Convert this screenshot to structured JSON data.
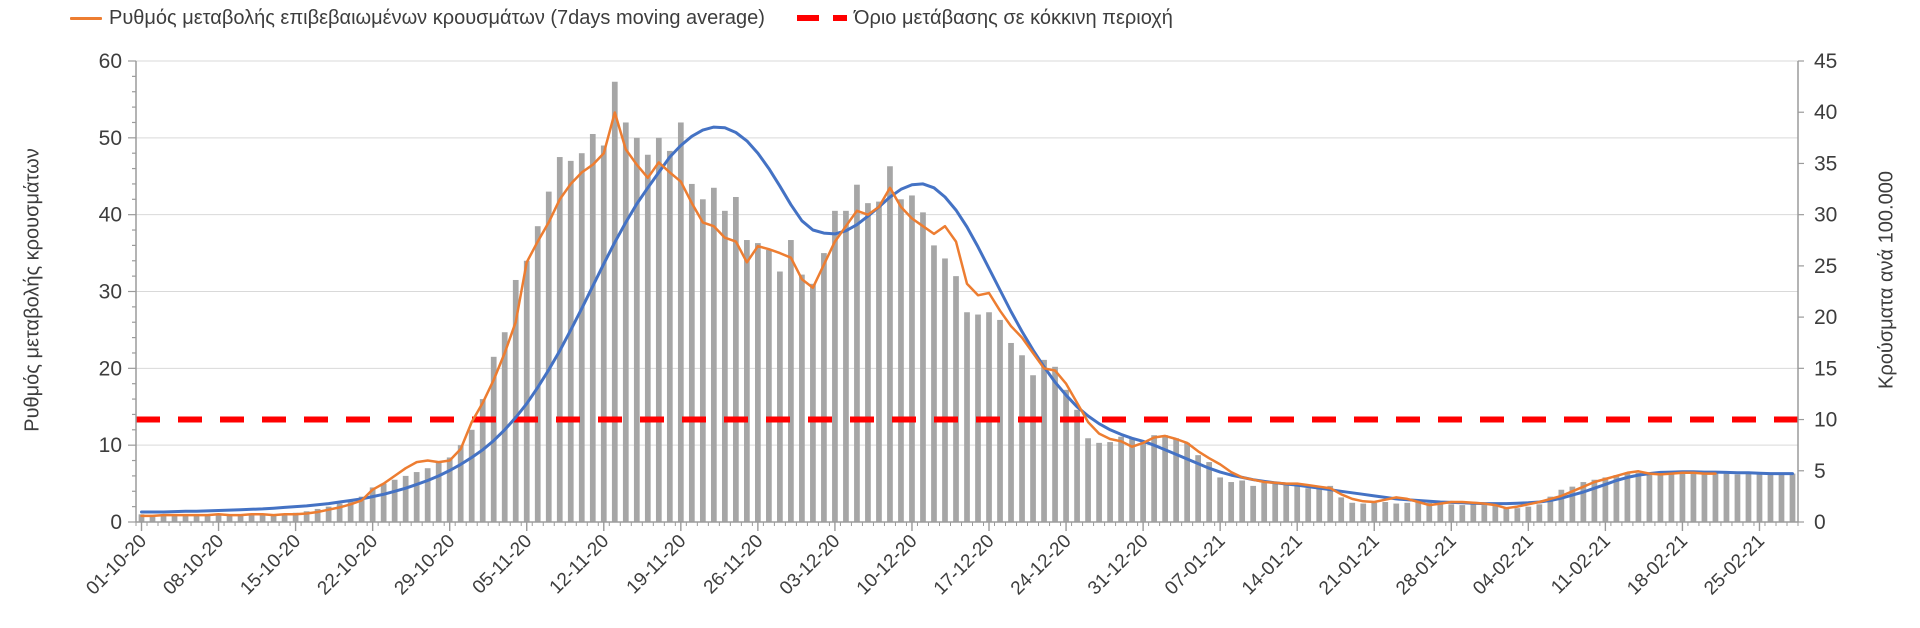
{
  "page": {
    "background": "#FFFFFF"
  },
  "legend": {
    "items": [
      {
        "label": "Ρυθμός μεταβολής επιβεβαιωμένων κρουσμάτων (7days moving average)",
        "marker": "orange-line",
        "color": "#ED7D31"
      },
      {
        "label": "Όριο μετάβασης σε κόκκινη περιοχή",
        "marker": "red-dashed-line",
        "color": "#FF0000"
      }
    ]
  },
  "chart_data": {
    "type": "combo",
    "note": "Daily bars + 7-day moving average (orange) + smooth trend (blue) + red dashed threshold. All series values are expressed in left-axis units (0-60); right axis (0-45) is a proportional second scale: right_value = left_value * 0.75.",
    "x_start_date": "01-10-20",
    "x_tick_labels": [
      "01-10-20",
      "08-10-20",
      "15-10-20",
      "22-10-20",
      "29-10-20",
      "05-11-20",
      "12-11-20",
      "19-11-20",
      "26-11-20",
      "03-12-20",
      "10-12-20",
      "17-12-20",
      "24-12-20",
      "31-12-20",
      "07-01-21",
      "14-01-21",
      "21-01-21",
      "28-01-21",
      "04-02-21",
      "11-02-21",
      "18-02-21",
      "25-02-21"
    ],
    "axes": {
      "left": {
        "title": "Ρυθμός μεταβολής κρουσμάτων",
        "min": 0,
        "max": 60,
        "tick_labels": [
          "0",
          "10",
          "20",
          "30",
          "40",
          "50",
          "60"
        ]
      },
      "right": {
        "title": "Κρούσματα ανά 100.000",
        "min": 0,
        "max": 45,
        "tick_labels": [
          "0",
          "5",
          "10",
          "15",
          "20",
          "25",
          "30",
          "35",
          "40",
          "45"
        ]
      }
    },
    "grid": "horizontal",
    "legend_position": "top",
    "threshold": {
      "name": "Όριο μετάβασης σε κόκκινη περιοχή",
      "value_left_units": 13.33,
      "value_right_units": 10,
      "color": "#FF0000",
      "style": "dashed"
    },
    "series": [
      {
        "name": "daily-cases-bars",
        "type": "bar",
        "color": "#A6A6A6",
        "values": [
          1.0,
          0.9,
          1.0,
          0.9,
          0.8,
          0.9,
          1.0,
          1.0,
          0.9,
          1.0,
          1.1,
          1.0,
          0.9,
          1.0,
          1.2,
          1.4,
          1.7,
          2.0,
          2.4,
          2.8,
          3.3,
          4.5,
          5.0,
          5.5,
          6.0,
          6.5,
          7.0,
          7.7,
          8.4,
          10.0,
          12.0,
          16.0,
          21.5,
          24.7,
          31.5,
          34.0,
          38.5,
          43.0,
          47.5,
          47.0,
          48.0,
          50.5,
          49.0,
          57.3,
          52.0,
          50.0,
          47.8,
          50.0,
          48.3,
          52.0,
          44.0,
          42.0,
          43.5,
          40.5,
          42.3,
          36.7,
          36.3,
          35.4,
          32.6,
          36.7,
          32.2,
          31.0,
          35.0,
          40.5,
          40.5,
          43.9,
          41.5,
          41.7,
          46.3,
          42.0,
          42.5,
          40.3,
          36.0,
          34.3,
          32.0,
          27.3,
          27.0,
          27.3,
          26.3,
          23.3,
          21.7,
          19.1,
          21.1,
          20.2,
          17.2,
          14.6,
          10.9,
          10.3,
          10.4,
          11.1,
          10.9,
          10.4,
          11.3,
          11.3,
          10.9,
          10.3,
          8.7,
          7.8,
          5.8,
          5.2,
          5.4,
          4.7,
          5.1,
          5.0,
          5.0,
          4.9,
          4.4,
          4.6,
          4.7,
          3.2,
          2.5,
          2.4,
          2.5,
          2.6,
          2.4,
          2.5,
          2.7,
          2.5,
          2.4,
          2.3,
          2.2,
          2.3,
          2.2,
          2.1,
          1.9,
          1.8,
          2.0,
          2.3,
          3.3,
          4.2,
          4.6,
          5.2,
          5.5,
          5.8,
          6.1,
          6.3,
          6.4,
          6.2,
          6.3,
          6.5,
          6.4,
          6.3,
          6.4,
          6.5,
          6.3,
          6.2,
          6.3,
          6.4,
          6.3,
          6.2,
          6.3
        ]
      },
      {
        "name": "Ρυθμός μεταβολής επιβεβαιωμένων κρουσμάτων (7days moving average)",
        "type": "line",
        "color": "#ED7D31",
        "values": [
          0.8,
          0.8,
          0.9,
          0.9,
          0.9,
          0.9,
          0.9,
          1.0,
          0.9,
          0.9,
          1.0,
          1.0,
          0.9,
          1.0,
          1.0,
          1.1,
          1.3,
          1.6,
          1.9,
          2.3,
          2.8,
          4.2,
          5.0,
          6.0,
          7.0,
          7.8,
          8.0,
          7.8,
          8.0,
          9.5,
          13.0,
          15.5,
          18.5,
          22.0,
          26.0,
          33.8,
          36.5,
          39.0,
          42.0,
          44.0,
          45.5,
          46.5,
          48.0,
          53.3,
          48.5,
          46.5,
          44.8,
          46.8,
          45.5,
          44.3,
          41.5,
          39.0,
          38.5,
          37.0,
          36.5,
          33.8,
          35.9,
          35.5,
          35.0,
          34.4,
          31.6,
          30.5,
          33.5,
          36.5,
          38.5,
          40.5,
          40.0,
          41.0,
          43.5,
          41.0,
          39.5,
          38.5,
          37.5,
          38.5,
          36.5,
          31.0,
          29.5,
          29.8,
          27.5,
          25.5,
          24.0,
          22.0,
          20.0,
          19.7,
          18.0,
          15.5,
          13.0,
          11.5,
          10.8,
          10.5,
          9.8,
          10.3,
          11.0,
          11.2,
          10.8,
          10.3,
          9.2,
          8.3,
          7.5,
          6.5,
          5.8,
          5.5,
          5.2,
          5.1,
          5.0,
          5.0,
          4.8,
          4.6,
          4.4,
          3.6,
          3.0,
          2.7,
          2.6,
          2.9,
          3.2,
          3.0,
          2.6,
          2.2,
          2.4,
          2.6,
          2.6,
          2.5,
          2.4,
          2.2,
          1.8,
          2.0,
          2.3,
          2.6,
          3.0,
          3.4,
          4.0,
          4.6,
          5.2,
          5.6,
          6.0,
          6.4,
          6.6,
          6.3,
          6.2,
          6.3,
          6.4,
          6.4,
          6.3,
          6.3,
          null,
          null,
          null,
          null,
          null,
          null,
          null
        ]
      },
      {
        "name": "trend-line",
        "type": "line",
        "color": "#4472C4",
        "values": [
          1.3,
          1.3,
          1.3,
          1.35,
          1.4,
          1.4,
          1.45,
          1.5,
          1.55,
          1.6,
          1.65,
          1.7,
          1.8,
          1.9,
          2.0,
          2.1,
          2.25,
          2.4,
          2.6,
          2.8,
          3.0,
          3.3,
          3.6,
          4.0,
          4.4,
          4.9,
          5.4,
          6.0,
          6.7,
          7.5,
          8.4,
          9.4,
          10.6,
          12.0,
          13.6,
          15.4,
          17.5,
          19.8,
          22.3,
          25.0,
          27.8,
          30.7,
          33.6,
          36.4,
          39.0,
          41.4,
          43.5,
          45.5,
          47.5,
          49.0,
          50.2,
          51.0,
          51.4,
          51.3,
          50.7,
          49.6,
          48.0,
          46.0,
          43.7,
          41.3,
          39.2,
          38.0,
          37.6,
          37.5,
          37.9,
          38.7,
          39.8,
          41.0,
          42.3,
          43.3,
          43.9,
          44.0,
          43.5,
          42.3,
          40.6,
          38.4,
          35.8,
          33.0,
          30.2,
          27.4,
          24.8,
          22.4,
          20.2,
          18.2,
          16.5,
          15.0,
          13.8,
          12.8,
          12.0,
          11.4,
          10.9,
          10.5,
          10.0,
          9.4,
          8.8,
          8.2,
          7.6,
          7.0,
          6.5,
          6.1,
          5.8,
          5.5,
          5.3,
          5.1,
          4.95,
          4.8,
          4.6,
          4.4,
          4.2,
          4.0,
          3.8,
          3.6,
          3.4,
          3.2,
          3.0,
          2.9,
          2.8,
          2.7,
          2.6,
          2.55,
          2.5,
          2.45,
          2.4,
          2.4,
          2.4,
          2.45,
          2.5,
          2.6,
          2.8,
          3.1,
          3.5,
          3.9,
          4.4,
          4.9,
          5.4,
          5.8,
          6.1,
          6.3,
          6.45,
          6.5,
          6.55,
          6.55,
          6.5,
          6.5,
          6.45,
          6.4,
          6.4,
          6.35,
          6.3,
          6.3,
          6.3
        ]
      }
    ],
    "colors": {
      "bars": "#A6A6A6",
      "ma_line": "#ED7D31",
      "trend_line": "#4472C4",
      "threshold": "#FF0000",
      "gridline": "#D9D9D9",
      "axis": "#9b9b9b",
      "text": "#3d3d3d"
    }
  }
}
